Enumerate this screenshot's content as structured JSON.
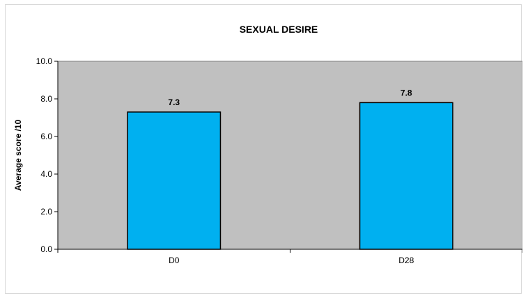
{
  "chart_data": {
    "type": "bar",
    "title": "SEXUAL DESIRE",
    "xlabel": "",
    "ylabel": "Average score /10",
    "categories": [
      "D0",
      "D28"
    ],
    "values": [
      7.3,
      7.8
    ],
    "data_labels": [
      "7.3",
      "7.8"
    ],
    "ylim": [
      0,
      10
    ],
    "yticks": [
      0,
      2,
      4,
      6,
      8,
      10
    ],
    "ytick_labels": [
      "0.0",
      "2.0",
      "4.0",
      "6.0",
      "8.0",
      "10.0"
    ],
    "grid": false,
    "legend": "none",
    "colors": {
      "bar": "#00b0f0",
      "bar_edge": "#000000",
      "plot_background": "#c0c0c0"
    }
  }
}
